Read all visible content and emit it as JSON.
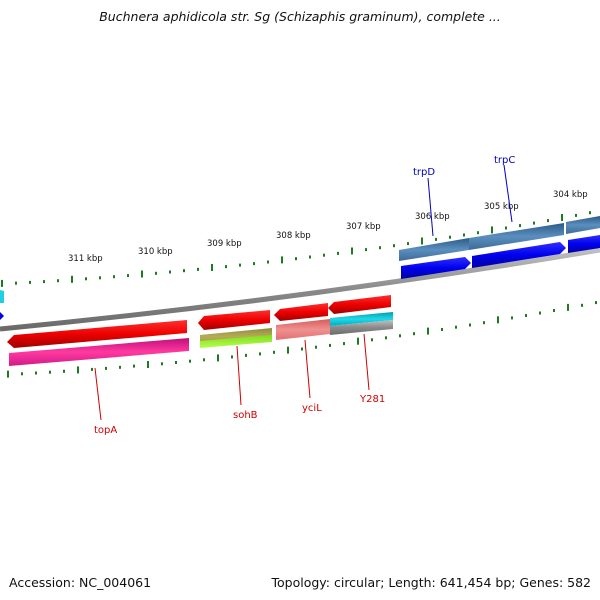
{
  "title": "Buchnera aphidicola str. Sg (Schizaphis graminum), complete ...",
  "footer": {
    "accession": "Accession: NC_004061",
    "summary": "Topology: circular; Length: 641,454 bp; Genes: 582"
  },
  "ticks": [
    "311 kbp",
    "310 kbp",
    "309 kbp",
    "308 kbp",
    "307 kbp",
    "306 kbp",
    "305 kbp",
    "304 kbp"
  ],
  "genes": [
    {
      "name": "topA",
      "color": "#d00000"
    },
    {
      "name": "sohB",
      "color": "#d00000"
    },
    {
      "name": "yciL",
      "color": "#d00000"
    },
    {
      "name": "Y281",
      "color": "#d00000"
    },
    {
      "name": "trpD",
      "color": "#0000c0"
    },
    {
      "name": "trpC",
      "color": "#0000c0"
    }
  ],
  "colors": {
    "backbone": "#8a8a8a",
    "forward_cds": "#0000ee",
    "reverse_cds": "#ee0000",
    "tick": "#1e7a1e"
  }
}
